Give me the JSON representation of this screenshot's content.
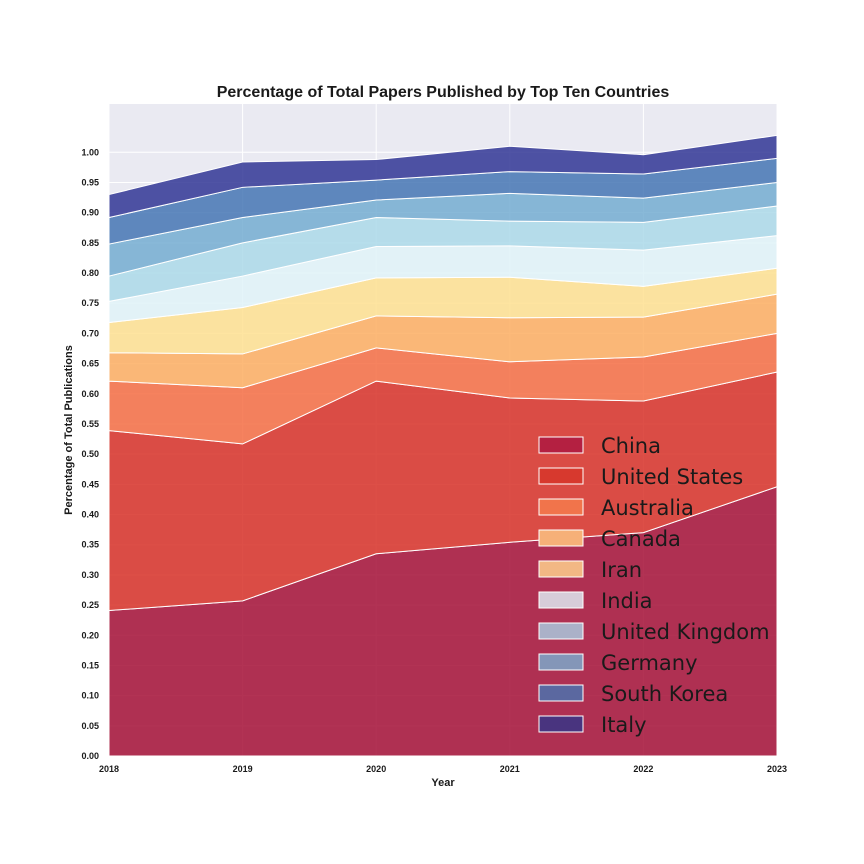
{
  "chart_data": {
    "type": "area",
    "stacked": true,
    "title": "Percentage of Total Papers Published by Top Ten Countries",
    "xlabel": "Year",
    "ylabel": "Percentage of Total Publications",
    "x": [
      2018,
      2019,
      2020,
      2021,
      2022,
      2023
    ],
    "x_tick_labels": [
      "2018",
      "2019",
      "2020",
      "2021",
      "2022",
      "2023"
    ],
    "y_tick_labels": [
      "0.00",
      "0.05",
      "0.10",
      "0.15",
      "0.20",
      "0.25",
      "0.30",
      "0.35",
      "0.40",
      "0.45",
      "0.50",
      "0.55",
      "0.60",
      "0.65",
      "0.70",
      "0.75",
      "0.80",
      "0.85",
      "0.90",
      "0.95",
      "1.00"
    ],
    "xlim": [
      2018,
      2023
    ],
    "ylim": [
      0,
      1.08
    ],
    "grid": true,
    "legend_position": "lower-right",
    "series": [
      {
        "name": "China",
        "color": "#a50f36",
        "values": [
          0.241,
          0.257,
          0.335,
          0.354,
          0.37,
          0.446
        ]
      },
      {
        "name": "United States",
        "color": "#d73027",
        "values": [
          0.298,
          0.26,
          0.286,
          0.239,
          0.218,
          0.19
        ]
      },
      {
        "name": "Australia",
        "color": "#f46d43",
        "values": [
          0.082,
          0.093,
          0.055,
          0.06,
          0.073,
          0.064
        ]
      },
      {
        "name": "Canada",
        "color": "#fdae61",
        "values": [
          0.047,
          0.056,
          0.053,
          0.073,
          0.066,
          0.065
        ]
      },
      {
        "name": "Iran",
        "color": "#fee090",
        "values": [
          0.05,
          0.077,
          0.063,
          0.067,
          0.051,
          0.043
        ]
      },
      {
        "name": "India",
        "color": "#e0f3f8",
        "values": [
          0.035,
          0.052,
          0.052,
          0.052,
          0.06,
          0.054
        ]
      },
      {
        "name": "United Kingdom",
        "color": "#abd9e9",
        "values": [
          0.042,
          0.055,
          0.048,
          0.041,
          0.046,
          0.049
        ]
      },
      {
        "name": "Germany",
        "color": "#74add1",
        "values": [
          0.053,
          0.042,
          0.029,
          0.046,
          0.04,
          0.039
        ]
      },
      {
        "name": "South Korea",
        "color": "#4575b4",
        "values": [
          0.044,
          0.05,
          0.033,
          0.036,
          0.04,
          0.04
        ]
      },
      {
        "name": "Italy",
        "color": "#313695",
        "values": [
          0.038,
          0.042,
          0.034,
          0.042,
          0.032,
          0.038
        ]
      }
    ],
    "legend_colors": [
      "#b42041",
      "#d7392e",
      "#f1744b",
      "#f6b078",
      "#f2b884",
      "#d7ccd9",
      "#abb1c8",
      "#8496b8",
      "#5b68a0",
      "#49347f"
    ],
    "style": {
      "plot_background": "#eaeaf2",
      "grid_color": "#ffffff",
      "area_opacity": 0.85
    }
  }
}
